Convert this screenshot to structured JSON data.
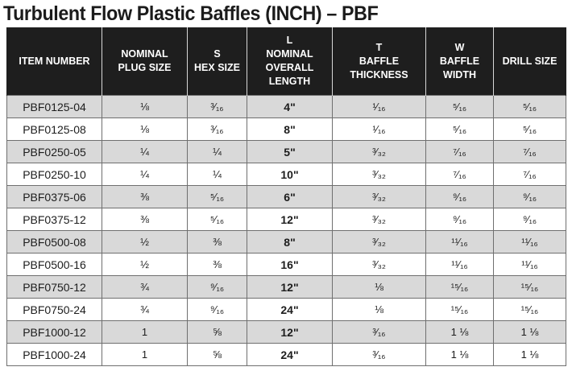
{
  "title": "Turbulent Flow Plastic Baffles (INCH) – PBF",
  "headers": [
    {
      "lines": [
        "ITEM NUMBER"
      ]
    },
    {
      "lines": [
        "NOMINAL",
        "PLUG SIZE"
      ]
    },
    {
      "lines": [
        "S",
        "HEX SIZE"
      ]
    },
    {
      "lines": [
        "L",
        "NOMINAL",
        "OVERALL",
        "LENGTH"
      ]
    },
    {
      "lines": [
        "T",
        "BAFFLE",
        "THICKNESS"
      ]
    },
    {
      "lines": [
        "W",
        "BAFFLE",
        "WIDTH"
      ]
    },
    {
      "lines": [
        "DRILL SIZE"
      ]
    }
  ],
  "rows": [
    {
      "item": "PBF0125-04",
      "plug": "⅛",
      "hex": "³⁄₁₆",
      "length": "4\"",
      "thickness": "¹⁄₁₆",
      "width": "⁵⁄₁₆",
      "drill": "⁵⁄₁₆"
    },
    {
      "item": "PBF0125-08",
      "plug": "⅛",
      "hex": "³⁄₁₆",
      "length": "8\"",
      "thickness": "¹⁄₁₆",
      "width": "⁵⁄₁₆",
      "drill": "⁵⁄₁₆"
    },
    {
      "item": "PBF0250-05",
      "plug": "¼",
      "hex": "¼",
      "length": "5\"",
      "thickness": "³⁄₃₂",
      "width": "⁷⁄₁₆",
      "drill": "⁷⁄₁₆"
    },
    {
      "item": "PBF0250-10",
      "plug": "¼",
      "hex": "¼",
      "length": "10\"",
      "thickness": "³⁄₃₂",
      "width": "⁷⁄₁₆",
      "drill": "⁷⁄₁₆"
    },
    {
      "item": "PBF0375-06",
      "plug": "⅜",
      "hex": "⁵⁄₁₆",
      "length": "6\"",
      "thickness": "³⁄₃₂",
      "width": "⁹⁄₁₆",
      "drill": "⁹⁄₁₆"
    },
    {
      "item": "PBF0375-12",
      "plug": "⅜",
      "hex": "⁵⁄₁₆",
      "length": "12\"",
      "thickness": "³⁄₃₂",
      "width": "⁹⁄₁₆",
      "drill": "⁹⁄₁₆"
    },
    {
      "item": "PBF0500-08",
      "plug": "½",
      "hex": "⅜",
      "length": "8\"",
      "thickness": "³⁄₃₂",
      "width": "¹¹⁄₁₆",
      "drill": "¹¹⁄₁₆"
    },
    {
      "item": "PBF0500-16",
      "plug": "½",
      "hex": "⅜",
      "length": "16\"",
      "thickness": "³⁄₃₂",
      "width": "¹¹⁄₁₆",
      "drill": "¹¹⁄₁₆"
    },
    {
      "item": "PBF0750-12",
      "plug": "¾",
      "hex": "⁹⁄₁₆",
      "length": "12\"",
      "thickness": "⅛",
      "width": "¹⁵⁄₁₆",
      "drill": "¹⁵⁄₁₆"
    },
    {
      "item": "PBF0750-24",
      "plug": "¾",
      "hex": "⁹⁄₁₆",
      "length": "24\"",
      "thickness": "⅛",
      "width": "¹⁵⁄₁₆",
      "drill": "¹⁵⁄₁₆"
    },
    {
      "item": "PBF1000-12",
      "plug": "1",
      "hex": "⅝",
      "length": "12\"",
      "thickness": "³⁄₁₆",
      "width": "1 ⅛",
      "drill": "1 ⅛"
    },
    {
      "item": "PBF1000-24",
      "plug": "1",
      "hex": "⅝",
      "length": "24\"",
      "thickness": "³⁄₁₆",
      "width": "1 ⅛",
      "drill": "1 ⅛"
    }
  ]
}
